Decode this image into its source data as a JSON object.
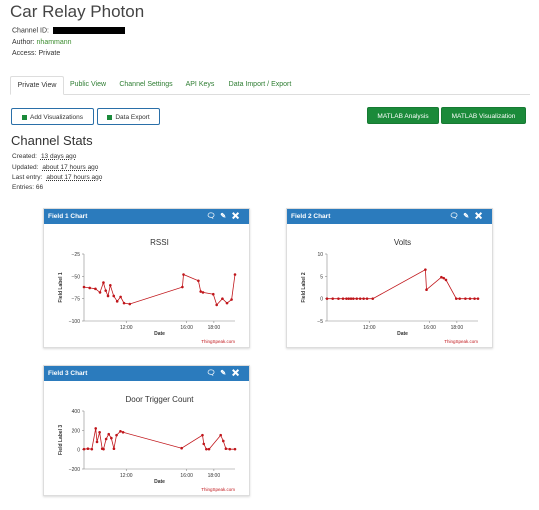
{
  "channel": {
    "title": "Car Relay Photon",
    "channel_id_label": "Channel ID:",
    "author_label": "Author:",
    "author": "nhammann",
    "access_label": "Access:",
    "access": "Private"
  },
  "tabs": [
    {
      "label": "Private View",
      "active": true
    },
    {
      "label": "Public View",
      "active": false
    },
    {
      "label": "Channel Settings",
      "active": false
    },
    {
      "label": "API Keys",
      "active": false
    },
    {
      "label": "Data Import / Export",
      "active": false
    }
  ],
  "toolbar": {
    "add_viz_label": "Add Visualizations",
    "data_export_label": "Data Export",
    "matlab_analysis_label": "MATLAB Analysis",
    "matlab_viz_label": "MATLAB Visualization"
  },
  "stats": {
    "heading": "Channel Stats",
    "created_label": "Created:",
    "created": "13 days ago",
    "updated_label": "Updated:",
    "updated": "about 17 hours ago",
    "last_entry_label": "Last entry:",
    "last_entry": "about 17 hours ago",
    "entries_label": "Entries:",
    "entries": "66"
  },
  "icons": {
    "comment": "comment-icon",
    "edit": "pencil-icon",
    "close": "close-icon"
  },
  "colors": {
    "header": "#2b7bbd",
    "accent": "#1b8a3a",
    "line": "#c0161b"
  },
  "watermark": "ThingSpeak.com",
  "chart_data": [
    {
      "type": "line",
      "panel_title": "Field 1 Chart",
      "title": "RSSI",
      "xlabel": "Date",
      "ylabel": "Field Label 1",
      "x_ticks": [
        "12:00",
        "16:00",
        "18:00"
      ],
      "y_ticks": [
        -25,
        -50,
        -75,
        -100
      ],
      "ylim": [
        -100,
        -25
      ],
      "x": [
        0.0,
        0.5,
        1.0,
        1.4,
        1.7,
        1.9,
        2.1,
        2.3,
        2.6,
        2.9,
        3.2,
        3.5,
        4.0,
        8.6,
        8.7,
        10.0,
        10.2,
        10.4,
        11.3,
        11.6,
        12.1,
        12.5,
        12.9,
        13.2
      ],
      "values": [
        -62,
        -63,
        -64,
        -68,
        -57,
        -66,
        -72,
        -60,
        -72,
        -78,
        -73,
        -80,
        -81,
        -62,
        -48,
        -55,
        -67,
        -68,
        -70,
        -82,
        -75,
        -80,
        -76,
        -48
      ]
    },
    {
      "type": "line",
      "panel_title": "Field 2 Chart",
      "title": "Volts",
      "xlabel": "Date",
      "ylabel": "Field Label 2",
      "x_ticks": [
        "12:00",
        "16:00",
        "18:00"
      ],
      "y_ticks": [
        10,
        5,
        0,
        -5
      ],
      "ylim": [
        -5,
        10
      ],
      "x": [
        0.0,
        0.5,
        1.0,
        1.4,
        1.7,
        1.9,
        2.1,
        2.3,
        2.6,
        2.9,
        3.2,
        3.5,
        4.0,
        8.6,
        8.7,
        10.0,
        10.2,
        10.4,
        11.3,
        11.6,
        12.1,
        12.5,
        12.9,
        13.2
      ],
      "values": [
        0,
        0,
        0,
        0,
        0,
        0,
        0,
        0,
        0,
        0,
        0,
        0,
        0,
        6.5,
        2,
        4.8,
        4.6,
        4.2,
        0,
        0,
        0,
        0,
        0,
        0
      ]
    },
    {
      "type": "line",
      "panel_title": "Field 3 Chart",
      "title": "Door Trigger Count",
      "xlabel": "Date",
      "ylabel": "Field Label 3",
      "x_ticks": [
        "12:00",
        "16:00",
        "18:00"
      ],
      "y_ticks": [
        400,
        200,
        0,
        -200
      ],
      "ylim": [
        -200,
        400
      ],
      "x": [
        0.0,
        0.3,
        0.6,
        0.9,
        1.0,
        1.2,
        1.4,
        1.5,
        1.7,
        1.9,
        2.1,
        2.3,
        2.5,
        2.8,
        3.0,
        7.5,
        9.1,
        9.2,
        9.4,
        9.6,
        10.5,
        10.7,
        10.9,
        11.2,
        11.6
      ],
      "values": [
        5,
        10,
        5,
        220,
        80,
        180,
        10,
        5,
        110,
        160,
        120,
        10,
        150,
        190,
        180,
        15,
        150,
        60,
        5,
        5,
        150,
        90,
        10,
        5,
        5
      ]
    }
  ]
}
